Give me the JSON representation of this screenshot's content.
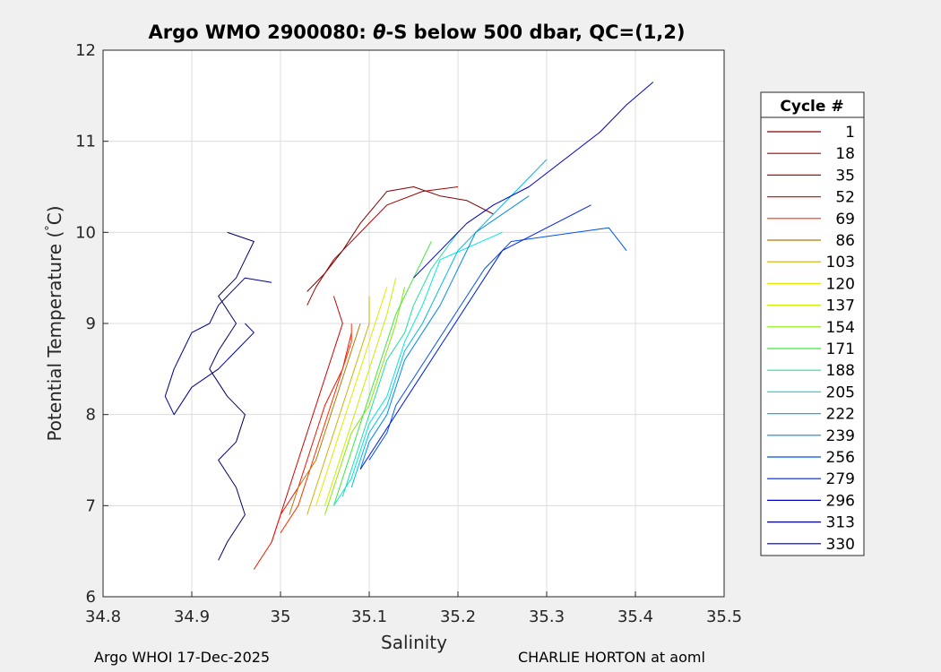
{
  "chart_data": {
    "type": "line",
    "title_parts": {
      "prefix": "Argo WMO 2900080: ",
      "theta": "θ",
      "suffix": "-S below 500 dbar,  QC=(1,2)"
    },
    "xlabel": "Salinity",
    "ylabel_parts": {
      "prefix": "Potential Temperature (",
      "degree": "°",
      "suffix": "C)"
    },
    "xlim": [
      34.8,
      35.5
    ],
    "ylim": [
      6,
      12
    ],
    "xticks": [
      "34.8",
      "34.9",
      "35",
      "35.1",
      "35.2",
      "35.3",
      "35.4",
      "35.5"
    ],
    "yticks": [
      "6",
      "7",
      "8",
      "9",
      "10",
      "11",
      "12"
    ],
    "grid": true,
    "legend": {
      "title": "Cycle #",
      "placement": "outside-right",
      "entries": [
        {
          "label": "1",
          "color": "#800000"
        },
        {
          "label": "18",
          "color": "#a00000"
        },
        {
          "label": "35",
          "color": "#cc0000"
        },
        {
          "label": "52",
          "color": "#ee1100"
        },
        {
          "label": "69",
          "color": "#ff3300"
        },
        {
          "label": "86",
          "color": "#b87800"
        },
        {
          "label": "103",
          "color": "#d0b000"
        },
        {
          "label": "120",
          "color": "#e8e800"
        },
        {
          "label": "137",
          "color": "#c8f000"
        },
        {
          "label": "154",
          "color": "#88e800"
        },
        {
          "label": "171",
          "color": "#40e840"
        },
        {
          "label": "188",
          "color": "#20e0a0"
        },
        {
          "label": "205",
          "color": "#00e8e0"
        },
        {
          "label": "222",
          "color": "#00b8f0"
        },
        {
          "label": "239",
          "color": "#0088f0"
        },
        {
          "label": "256",
          "color": "#0050f0"
        },
        {
          "label": "279",
          "color": "#0020e0"
        },
        {
          "label": "296",
          "color": "#0000c0"
        },
        {
          "label": "313",
          "color": "#000090"
        },
        {
          "label": "330",
          "color": "#000060"
        }
      ]
    },
    "series": [
      {
        "color": "#800000",
        "x": [
          35.03,
          35.05,
          35.07,
          35.09,
          35.12,
          35.15,
          35.18,
          35.21,
          35.24
        ],
        "y": [
          9.35,
          9.55,
          9.8,
          10.1,
          10.45,
          10.5,
          10.4,
          10.35,
          10.2
        ]
      },
      {
        "color": "#a00000",
        "x": [
          35.03,
          35.04,
          35.06,
          35.09,
          35.12,
          35.16,
          35.2
        ],
        "y": [
          9.2,
          9.4,
          9.7,
          10.0,
          10.3,
          10.45,
          10.5
        ]
      },
      {
        "color": "#cc0000",
        "x": [
          34.99,
          35.0,
          35.01,
          35.02,
          35.03,
          35.04,
          35.05,
          35.06,
          35.07,
          35.06
        ],
        "y": [
          6.6,
          6.9,
          7.2,
          7.5,
          7.8,
          8.1,
          8.4,
          8.7,
          9.0,
          9.3
        ]
      },
      {
        "color": "#ee1100",
        "x": [
          34.97,
          34.99,
          35.0,
          35.02,
          35.03,
          35.04,
          35.05,
          35.07,
          35.08
        ],
        "y": [
          6.3,
          6.6,
          6.9,
          7.2,
          7.5,
          7.8,
          8.1,
          8.5,
          8.9
        ]
      },
      {
        "color": "#ff3300",
        "x": [
          35.0,
          35.02,
          35.03,
          35.04,
          35.05,
          35.06,
          35.07,
          35.08,
          35.08
        ],
        "y": [
          6.7,
          7.0,
          7.3,
          7.6,
          7.9,
          8.2,
          8.5,
          8.8,
          9.0
        ]
      },
      {
        "color": "#b87800",
        "x": [
          35.01,
          35.02,
          35.04,
          35.05,
          35.06,
          35.07,
          35.08,
          35.09
        ],
        "y": [
          6.9,
          7.2,
          7.5,
          7.8,
          8.1,
          8.4,
          8.7,
          9.0
        ]
      },
      {
        "color": "#d0b000",
        "x": [
          35.03,
          35.04,
          35.05,
          35.06,
          35.07,
          35.08,
          35.09,
          35.1,
          35.1
        ],
        "y": [
          6.9,
          7.2,
          7.5,
          7.8,
          8.1,
          8.4,
          8.7,
          9.0,
          9.3
        ]
      },
      {
        "color": "#e8e800",
        "x": [
          35.04,
          35.05,
          35.06,
          35.07,
          35.08,
          35.09,
          35.1,
          35.11,
          35.12
        ],
        "y": [
          7.0,
          7.3,
          7.6,
          7.9,
          8.2,
          8.5,
          8.8,
          9.1,
          9.4
        ]
      },
      {
        "color": "#c8f000",
        "x": [
          35.05,
          35.06,
          35.07,
          35.08,
          35.09,
          35.1,
          35.11,
          35.12,
          35.13
        ],
        "y": [
          7.0,
          7.3,
          7.6,
          7.9,
          8.2,
          8.5,
          8.8,
          9.1,
          9.5
        ]
      },
      {
        "color": "#88e800",
        "x": [
          35.05,
          35.06,
          35.07,
          35.08,
          35.1,
          35.11,
          35.12,
          35.13,
          35.14
        ],
        "y": [
          6.9,
          7.2,
          7.5,
          7.8,
          8.1,
          8.4,
          8.7,
          9.0,
          9.4
        ]
      },
      {
        "color": "#40e840",
        "x": [
          35.06,
          35.07,
          35.08,
          35.09,
          35.1,
          35.11,
          35.12,
          35.13,
          35.15,
          35.17
        ],
        "y": [
          7.0,
          7.3,
          7.6,
          7.9,
          8.2,
          8.5,
          8.8,
          9.1,
          9.5,
          9.9
        ]
      },
      {
        "color": "#20e0a0",
        "x": [
          35.07,
          35.08,
          35.09,
          35.1,
          35.11,
          35.12,
          35.14,
          35.15,
          35.17,
          35.2
        ],
        "y": [
          7.1,
          7.4,
          7.7,
          8.0,
          8.3,
          8.6,
          8.9,
          9.2,
          9.6,
          10.0
        ]
      },
      {
        "color": "#00e8e0",
        "x": [
          35.06,
          35.08,
          35.09,
          35.1,
          35.12,
          35.13,
          35.14,
          35.16,
          35.18,
          35.25
        ],
        "y": [
          7.0,
          7.3,
          7.6,
          7.9,
          8.2,
          8.5,
          8.8,
          9.2,
          9.7,
          10.0
        ]
      },
      {
        "color": "#00b8f0",
        "x": [
          35.08,
          35.09,
          35.1,
          35.12,
          35.13,
          35.14,
          35.16,
          35.18,
          35.2,
          35.3
        ],
        "y": [
          7.2,
          7.5,
          7.8,
          8.1,
          8.4,
          8.7,
          9.0,
          9.4,
          9.8,
          10.8
        ]
      },
      {
        "color": "#0088f0",
        "x": [
          35.09,
          35.1,
          35.12,
          35.13,
          35.14,
          35.16,
          35.18,
          35.2,
          35.22,
          35.28
        ],
        "y": [
          7.4,
          7.7,
          8.0,
          8.3,
          8.6,
          8.9,
          9.2,
          9.6,
          10.0,
          10.4
        ]
      },
      {
        "color": "#0050f0",
        "x": [
          35.1,
          35.12,
          35.13,
          35.15,
          35.17,
          35.19,
          35.21,
          35.23,
          35.26,
          35.37,
          35.39
        ],
        "y": [
          7.5,
          7.8,
          8.1,
          8.4,
          8.7,
          9.0,
          9.3,
          9.6,
          9.9,
          10.05,
          9.8
        ]
      },
      {
        "color": "#0020e0",
        "x": [
          35.09,
          35.11,
          35.13,
          35.15,
          35.17,
          35.19,
          35.21,
          35.23,
          35.25,
          35.35
        ],
        "y": [
          7.4,
          7.7,
          8.0,
          8.3,
          8.6,
          8.9,
          9.2,
          9.5,
          9.8,
          10.3
        ]
      },
      {
        "color": "#0000c0",
        "x": [
          35.15,
          35.18,
          35.21,
          35.24,
          35.28,
          35.32,
          35.36,
          35.39,
          35.42
        ],
        "y": [
          9.5,
          9.8,
          10.1,
          10.3,
          10.5,
          10.8,
          11.1,
          11.4,
          11.65
        ]
      },
      {
        "color": "#000090",
        "x": [
          34.99,
          34.96,
          34.94,
          34.93,
          34.92,
          34.9,
          34.89,
          34.88,
          34.87,
          34.88,
          34.9,
          34.93,
          34.95,
          34.97,
          34.96
        ],
        "y": [
          9.45,
          9.5,
          9.3,
          9.2,
          9.0,
          8.9,
          8.7,
          8.5,
          8.2,
          8.0,
          8.3,
          8.5,
          8.7,
          8.9,
          9.0
        ]
      },
      {
        "color": "#000060",
        "x": [
          34.93,
          34.94,
          34.96,
          34.95,
          34.93,
          34.95,
          34.96,
          34.94,
          34.92,
          34.93,
          34.95,
          34.93,
          34.95,
          34.96,
          34.97,
          34.94
        ],
        "y": [
          6.4,
          6.6,
          6.9,
          7.2,
          7.5,
          7.7,
          8.0,
          8.2,
          8.5,
          8.7,
          9.0,
          9.3,
          9.5,
          9.7,
          9.9,
          10.0
        ]
      }
    ]
  },
  "footer": {
    "left": "Argo WHOI 17-Dec-2025",
    "right": "CHARLIE HORTON at aoml"
  }
}
